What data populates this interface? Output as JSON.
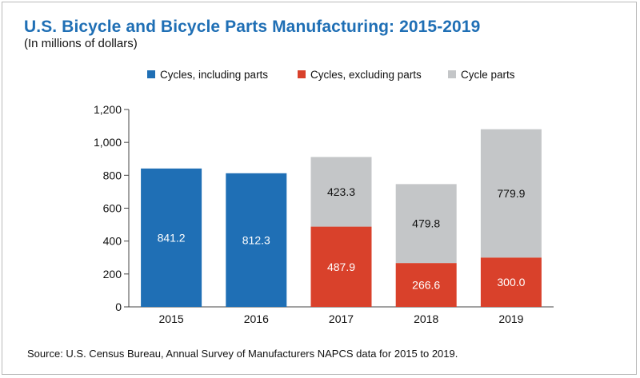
{
  "title": "U.S. Bicycle and Bicycle Parts Manufacturing: 2015-2019",
  "subtitle": "(In millions of dollars)",
  "source": "Source: U.S. Census Bureau, Annual Survey of Manufacturers NAPCS data for 2015 to 2019.",
  "colors": {
    "cycles_including_parts": "#1f6fb5",
    "cycles_excluding_parts": "#d9412b",
    "cycle_parts": "#c4c6c8"
  },
  "chart_data": {
    "type": "bar",
    "stacked": true,
    "title": "U.S. Bicycle and Bicycle Parts Manufacturing: 2015-2019",
    "subtitle": "(In millions of dollars)",
    "xlabel": "",
    "ylabel": "",
    "ylim": [
      0,
      1200
    ],
    "yticks": [
      0,
      200,
      400,
      600,
      800,
      1000,
      1200
    ],
    "ytick_labels": [
      "0",
      "200",
      "400",
      "600",
      "800",
      "1,000",
      "1,200"
    ],
    "categories": [
      "2015",
      "2016",
      "2017",
      "2018",
      "2019"
    ],
    "legend_position": "top",
    "series": [
      {
        "name": "Cycles, including parts",
        "color": "#1f6fb5",
        "values": [
          841.2,
          812.3,
          null,
          null,
          null
        ],
        "labels": [
          "841.2",
          "812.3",
          null,
          null,
          null
        ],
        "label_color": "#ffffff"
      },
      {
        "name": "Cycles, excluding parts",
        "color": "#d9412b",
        "values": [
          null,
          null,
          487.9,
          266.6,
          300.0
        ],
        "labels": [
          null,
          null,
          "487.9",
          "266.6",
          "300.0"
        ],
        "label_color": "#ffffff"
      },
      {
        "name": "Cycle parts",
        "color": "#c4c6c8",
        "values": [
          null,
          null,
          423.3,
          479.8,
          779.9
        ],
        "labels": [
          null,
          null,
          "423.3",
          "479.8",
          "779.9"
        ],
        "label_color": "#111111"
      }
    ]
  }
}
